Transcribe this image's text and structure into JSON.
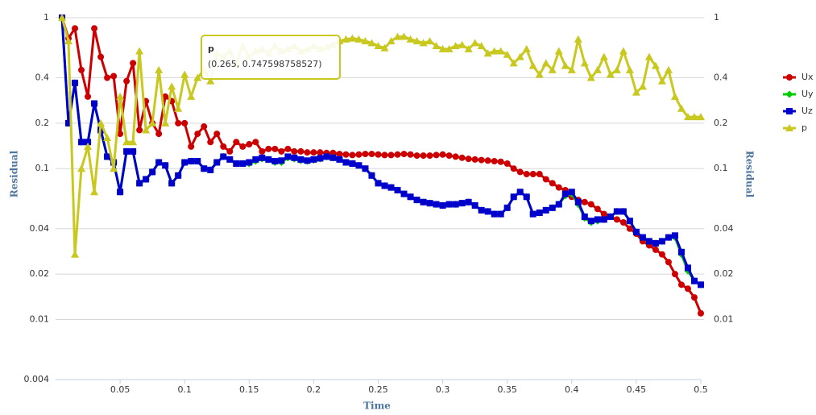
{
  "chart_data": {
    "type": "line",
    "x_label": "Time",
    "y_label": "Residual",
    "y2_label": "Residual",
    "log_scale": true,
    "grid": true,
    "legend": "right",
    "xlim": [
      0,
      0.5
    ],
    "xticks": [
      0.05,
      0.1,
      0.15,
      0.2,
      0.25,
      0.3,
      0.35,
      0.4,
      0.45,
      0.5
    ],
    "ylim": [
      0.004,
      1
    ],
    "yticks": [
      0.004,
      0.01,
      0.02,
      0.04,
      0.1,
      0.2,
      0.4,
      1
    ],
    "y2lim": [
      0.004,
      1
    ],
    "y2ticks": [
      0.01,
      0.02,
      0.04,
      0.1,
      0.2,
      0.4,
      1
    ],
    "tooltip": {
      "title": "p",
      "text": "(0.265, 0.747598758527)"
    },
    "x": [
      0.005,
      0.01,
      0.015,
      0.02,
      0.025,
      0.03,
      0.035,
      0.04,
      0.045,
      0.05,
      0.055,
      0.06,
      0.065,
      0.07,
      0.075,
      0.08,
      0.085,
      0.09,
      0.095,
      0.1,
      0.105,
      0.11,
      0.115,
      0.12,
      0.125,
      0.13,
      0.135,
      0.14,
      0.145,
      0.15,
      0.155,
      0.16,
      0.165,
      0.17,
      0.175,
      0.18,
      0.185,
      0.19,
      0.195,
      0.2,
      0.205,
      0.21,
      0.215,
      0.22,
      0.225,
      0.23,
      0.235,
      0.24,
      0.245,
      0.25,
      0.255,
      0.26,
      0.265,
      0.27,
      0.275,
      0.28,
      0.285,
      0.29,
      0.295,
      0.3,
      0.305,
      0.31,
      0.315,
      0.32,
      0.325,
      0.33,
      0.335,
      0.34,
      0.345,
      0.35,
      0.355,
      0.36,
      0.365,
      0.37,
      0.375,
      0.38,
      0.385,
      0.39,
      0.395,
      0.4,
      0.405,
      0.41,
      0.415,
      0.42,
      0.425,
      0.43,
      0.435,
      0.44,
      0.445,
      0.45,
      0.455,
      0.46,
      0.465,
      0.47,
      0.475,
      0.48,
      0.485,
      0.49,
      0.495,
      0.5
    ],
    "series": [
      {
        "name": "Ux",
        "color": "#cc0000",
        "marker": "circle",
        "values": [
          1,
          0.73,
          0.85,
          0.45,
          0.3,
          0.85,
          0.55,
          0.4,
          0.41,
          0.17,
          0.38,
          0.5,
          0.18,
          0.28,
          0.2,
          0.17,
          0.3,
          0.28,
          0.2,
          0.2,
          0.14,
          0.17,
          0.19,
          0.15,
          0.17,
          0.14,
          0.13,
          0.15,
          0.14,
          0.145,
          0.15,
          0.13,
          0.135,
          0.135,
          0.13,
          0.135,
          0.13,
          0.13,
          0.128,
          0.128,
          0.128,
          0.127,
          0.127,
          0.125,
          0.124,
          0.123,
          0.124,
          0.125,
          0.125,
          0.124,
          0.123,
          0.123,
          0.124,
          0.125,
          0.124,
          0.122,
          0.122,
          0.122,
          0.123,
          0.124,
          0.122,
          0.12,
          0.118,
          0.116,
          0.115,
          0.114,
          0.113,
          0.112,
          0.111,
          0.108,
          0.1,
          0.095,
          0.092,
          0.092,
          0.092,
          0.085,
          0.08,
          0.075,
          0.072,
          0.065,
          0.062,
          0.06,
          0.058,
          0.054,
          0.05,
          0.048,
          0.046,
          0.044,
          0.04,
          0.037,
          0.033,
          0.031,
          0.029,
          0.027,
          0.024,
          0.02,
          0.017,
          0.016,
          0.014,
          0.011
        ]
      },
      {
        "name": "Uy",
        "color": "#00cc00",
        "marker": "diamond",
        "values": [
          1,
          0.2,
          0.37,
          0.15,
          0.15,
          0.27,
          0.18,
          0.12,
          0.11,
          0.07,
          0.13,
          0.13,
          0.08,
          0.085,
          0.095,
          0.11,
          0.105,
          0.08,
          0.09,
          0.11,
          0.112,
          0.112,
          0.1,
          0.098,
          0.11,
          0.12,
          0.115,
          0.108,
          0.108,
          0.108,
          0.112,
          0.116,
          0.115,
          0.11,
          0.11,
          0.118,
          0.116,
          0.113,
          0.112,
          0.114,
          0.116,
          0.12,
          0.118,
          0.115,
          0.11,
          0.108,
          0.105,
          0.1,
          0.09,
          0.08,
          0.077,
          0.075,
          0.072,
          0.068,
          0.065,
          0.062,
          0.06,
          0.059,
          0.058,
          0.057,
          0.058,
          0.058,
          0.059,
          0.06,
          0.057,
          0.053,
          0.052,
          0.05,
          0.05,
          0.055,
          0.065,
          0.07,
          0.065,
          0.05,
          0.051,
          0.053,
          0.055,
          0.058,
          0.066,
          0.068,
          0.058,
          0.047,
          0.044,
          0.045,
          0.046,
          0.048,
          0.052,
          0.052,
          0.045,
          0.038,
          0.035,
          0.033,
          0.032,
          0.033,
          0.035,
          0.035,
          0.027,
          0.021,
          0.018,
          0.017
        ]
      },
      {
        "name": "Uz",
        "color": "#0000cc",
        "marker": "square",
        "values": [
          1,
          0.2,
          0.37,
          0.15,
          0.15,
          0.27,
          0.18,
          0.12,
          0.11,
          0.07,
          0.13,
          0.13,
          0.08,
          0.085,
          0.095,
          0.11,
          0.105,
          0.08,
          0.09,
          0.11,
          0.112,
          0.112,
          0.1,
          0.098,
          0.11,
          0.12,
          0.115,
          0.108,
          0.108,
          0.11,
          0.115,
          0.118,
          0.115,
          0.112,
          0.113,
          0.12,
          0.118,
          0.115,
          0.113,
          0.115,
          0.117,
          0.12,
          0.118,
          0.115,
          0.11,
          0.108,
          0.105,
          0.1,
          0.09,
          0.08,
          0.077,
          0.075,
          0.072,
          0.068,
          0.065,
          0.062,
          0.06,
          0.059,
          0.058,
          0.057,
          0.058,
          0.058,
          0.059,
          0.06,
          0.057,
          0.053,
          0.052,
          0.05,
          0.05,
          0.055,
          0.065,
          0.07,
          0.065,
          0.05,
          0.051,
          0.053,
          0.055,
          0.058,
          0.068,
          0.07,
          0.06,
          0.048,
          0.045,
          0.046,
          0.046,
          0.048,
          0.052,
          0.052,
          0.045,
          0.038,
          0.035,
          0.033,
          0.032,
          0.033,
          0.035,
          0.036,
          0.028,
          0.022,
          0.018,
          0.017
        ]
      },
      {
        "name": "p",
        "color": "#c8c81e",
        "marker": "triangle",
        "values": [
          1,
          0.7,
          0.027,
          0.1,
          0.14,
          0.07,
          0.2,
          0.16,
          0.1,
          0.3,
          0.15,
          0.15,
          0.6,
          0.18,
          0.2,
          0.45,
          0.2,
          0.35,
          0.25,
          0.42,
          0.3,
          0.4,
          0.45,
          0.38,
          0.58,
          0.55,
          0.6,
          0.5,
          0.65,
          0.55,
          0.6,
          0.62,
          0.58,
          0.65,
          0.6,
          0.62,
          0.65,
          0.6,
          0.62,
          0.65,
          0.62,
          0.64,
          0.66,
          0.7,
          0.72,
          0.73,
          0.72,
          0.7,
          0.68,
          0.65,
          0.63,
          0.7,
          0.747598758527,
          0.75,
          0.72,
          0.7,
          0.68,
          0.7,
          0.65,
          0.62,
          0.62,
          0.65,
          0.66,
          0.62,
          0.68,
          0.65,
          0.58,
          0.6,
          0.6,
          0.57,
          0.5,
          0.55,
          0.62,
          0.48,
          0.42,
          0.5,
          0.45,
          0.6,
          0.48,
          0.45,
          0.72,
          0.5,
          0.4,
          0.45,
          0.55,
          0.42,
          0.45,
          0.6,
          0.45,
          0.32,
          0.35,
          0.55,
          0.48,
          0.38,
          0.45,
          0.3,
          0.25,
          0.22,
          0.22,
          0.22
        ]
      }
    ]
  }
}
